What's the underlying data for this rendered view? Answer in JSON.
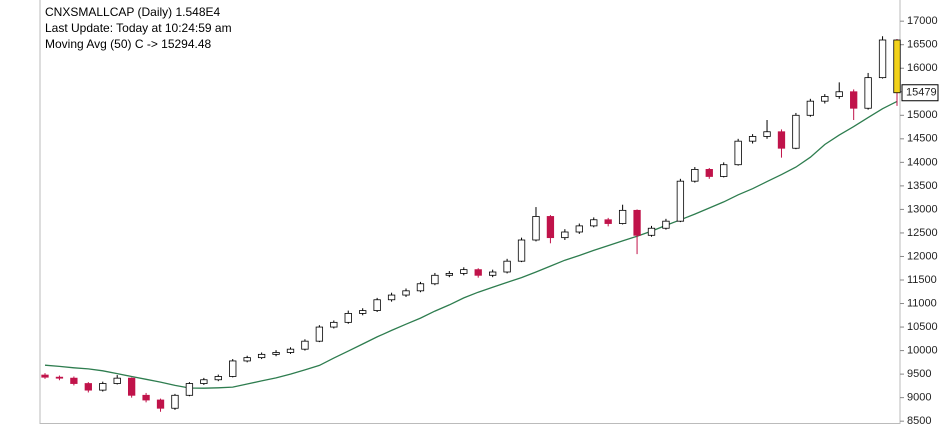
{
  "chart_data": {
    "type": "candlestick",
    "title": "CNXSMALLCAP (Daily) 1.548E4",
    "subtitle": "Last Update: Today at 10:24:59 am",
    "ylim": [
      8440,
      17450
    ],
    "yticks": [
      8500,
      9000,
      9500,
      10000,
      10500,
      11000,
      11500,
      12000,
      12500,
      13000,
      13500,
      14000,
      14500,
      15000,
      15500,
      16000,
      16500,
      17000
    ],
    "last_price": 15479,
    "up_color": "#ffffff",
    "down_color": "#c0134a",
    "last_color": "#f2d21b",
    "open": [
      9480,
      9435,
      9414,
      9300,
      9160,
      9300,
      9414,
      9050,
      8950,
      8775,
      9050,
      9300,
      9380,
      9450,
      9780,
      9850,
      9920,
      9960,
      10030,
      10200,
      10500,
      10600,
      10790,
      10850,
      11080,
      11180,
      11270,
      11420,
      11600,
      11640,
      11720,
      11600,
      11670,
      11900,
      12350,
      12850,
      12400,
      12520,
      12650,
      12780,
      12700,
      12980,
      12450,
      12600,
      12750,
      13600,
      13850,
      13700,
      13950,
      14450,
      14550,
      14650,
      14300,
      15000,
      15300,
      15400,
      15500,
      15150,
      15800,
      16600
    ],
    "high": [
      9520,
      9470,
      9450,
      9330,
      9340,
      9480,
      9430,
      9100,
      8980,
      9080,
      9330,
      9420,
      9490,
      9820,
      9890,
      9960,
      10010,
      10070,
      10240,
      10540,
      10640,
      10850,
      10900,
      11120,
      11230,
      11320,
      11460,
      11650,
      11690,
      11770,
      11750,
      11720,
      11950,
      12400,
      13050,
      12880,
      12580,
      12700,
      12830,
      12820,
      13100,
      13000,
      12650,
      12800,
      13650,
      13900,
      13880,
      14000,
      14500,
      14600,
      14900,
      14700,
      15050,
      15350,
      15450,
      15700,
      15550,
      15900,
      16680,
      16620
    ],
    "low": [
      9400,
      9370,
      9260,
      9110,
      9130,
      9280,
      9000,
      8900,
      8700,
      8740,
      9030,
      9270,
      9350,
      9430,
      9750,
      9820,
      9880,
      9930,
      10000,
      10180,
      10470,
      10570,
      10750,
      10820,
      11040,
      11140,
      11240,
      11390,
      11560,
      11600,
      11550,
      11560,
      11640,
      11880,
      12320,
      12280,
      12350,
      12480,
      12620,
      12640,
      12680,
      12050,
      12420,
      12570,
      12730,
      13570,
      13650,
      13680,
      13930,
      14400,
      14500,
      14100,
      14280,
      14970,
      15250,
      15350,
      14900,
      15120,
      15780,
      15200
    ],
    "close": [
      9435,
      9414,
      9300,
      9160,
      9300,
      9414,
      9050,
      8950,
      8775,
      9050,
      9300,
      9380,
      9450,
      9780,
      9850,
      9920,
      9960,
      10030,
      10200,
      10500,
      10600,
      10790,
      10850,
      11080,
      11180,
      11270,
      11420,
      11600,
      11640,
      11720,
      11600,
      11670,
      11900,
      12350,
      12850,
      12400,
      12520,
      12650,
      12780,
      12700,
      12980,
      12450,
      12600,
      12750,
      13600,
      13850,
      13700,
      13950,
      14450,
      14550,
      14650,
      14300,
      15000,
      15300,
      15400,
      15500,
      15150,
      15800,
      16600,
      15479
    ],
    "moving_average": {
      "name": "Moving Avg (50) C -> 15294.48",
      "color": "#2e7d4f",
      "values": [
        9690,
        9665,
        9635,
        9610,
        9570,
        9510,
        9450,
        9390,
        9330,
        9260,
        9205,
        9200,
        9210,
        9225,
        9290,
        9355,
        9420,
        9500,
        9590,
        9685,
        9840,
        9990,
        10140,
        10290,
        10430,
        10560,
        10690,
        10840,
        10970,
        11120,
        11240,
        11345,
        11450,
        11550,
        11670,
        11795,
        11920,
        12020,
        12130,
        12230,
        12330,
        12430,
        12540,
        12660,
        12780,
        12900,
        13030,
        13160,
        13310,
        13440,
        13590,
        13740,
        13900,
        14110,
        14380,
        14580,
        14760,
        14950,
        15140,
        15294.48
      ]
    }
  }
}
